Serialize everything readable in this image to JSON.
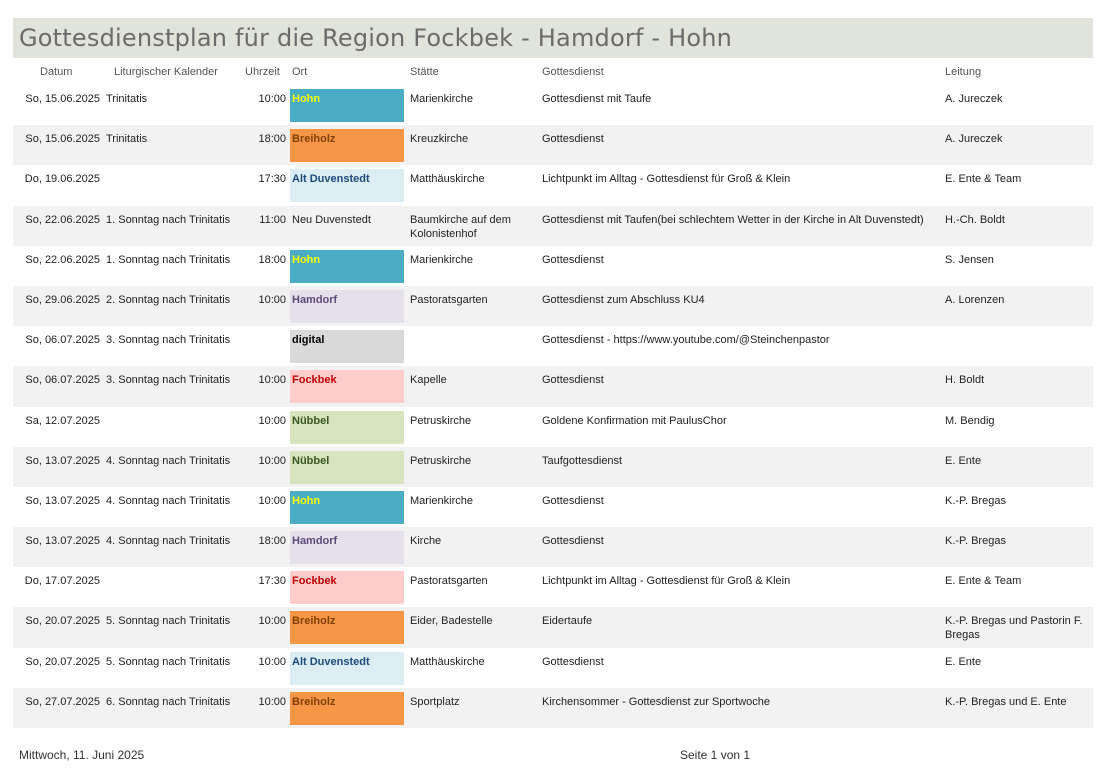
{
  "title": "Gottesdienstplan für die Region Fockbek - Hamdorf - Hohn",
  "headers": {
    "datum": "Datum",
    "lit": "Liturgischer Kalender",
    "uhrzeit": "Uhrzeit",
    "ort": "Ort",
    "staette": "Stätte",
    "gottesdienst": "Gottesdienst",
    "leitung": "Leitung"
  },
  "place_styles": {
    "Hohn": {
      "bg": "#4bacc6",
      "fg": "#ffff00"
    },
    "Breiholz": {
      "bg": "#f79646",
      "fg": "#7f3f00"
    },
    "Alt Duvenstedt": {
      "bg": "#daeef3",
      "fg": "#1f497d"
    },
    "Hamdorf": {
      "bg": "#e5e0ec",
      "fg": "#5f497a"
    },
    "digital": {
      "bg": "#d9d9d9",
      "fg": "#000000"
    },
    "Fockbek": {
      "bg": "#ffcccc",
      "fg": "#c00000"
    },
    "Nübbel": {
      "bg": "#d7e4bd",
      "fg": "#375623"
    }
  },
  "rows": [
    {
      "datum": "So, 15.06.2025",
      "lit": "Trinitatis",
      "uhrzeit": "10:00",
      "ort": "Hohn",
      "staette": "Marienkirche",
      "gottesdienst": "Gottesdienst mit Taufe",
      "leitung": "A. Jureczek"
    },
    {
      "datum": "So, 15.06.2025",
      "lit": "Trinitatis",
      "uhrzeit": "18:00",
      "ort": "Breiholz",
      "staette": "Kreuzkirche",
      "gottesdienst": "Gottesdienst",
      "leitung": "A. Jureczek"
    },
    {
      "datum": "Do, 19.06.2025",
      "lit": "",
      "uhrzeit": "17:30",
      "ort": "Alt Duvenstedt",
      "staette": "Matthäuskirche",
      "gottesdienst": "Lichtpunkt im Alltag - Gottesdienst für Groß & Klein",
      "leitung": "E. Ente & Team"
    },
    {
      "datum": "So, 22.06.2025",
      "lit": "1. Sonntag nach Trinitatis",
      "uhrzeit": "11:00",
      "ort": "Neu Duvenstedt",
      "staette": "Baumkirche auf dem Kolonistenhof",
      "gottesdienst": "Gottesdienst mit Taufen(bei schlechtem Wetter in der Kirche in Alt Duvenstedt)",
      "leitung": "H.-Ch. Boldt"
    },
    {
      "datum": "So, 22.06.2025",
      "lit": "1. Sonntag nach Trinitatis",
      "uhrzeit": "18:00",
      "ort": "Hohn",
      "staette": "Marienkirche",
      "gottesdienst": "Gottesdienst",
      "leitung": "S. Jensen"
    },
    {
      "datum": "So, 29.06.2025",
      "lit": "2. Sonntag nach Trinitatis",
      "uhrzeit": "10:00",
      "ort": "Hamdorf",
      "staette": "Pastoratsgarten",
      "gottesdienst": "Gottesdienst zum Abschluss KU4",
      "leitung": "A. Lorenzen"
    },
    {
      "datum": "So, 06.07.2025",
      "lit": "3. Sonntag nach Trinitatis",
      "uhrzeit": "",
      "ort": "digital",
      "staette": "",
      "gottesdienst": "Gottesdienst - https://www.youtube.com/@Steinchenpastor",
      "leitung": ""
    },
    {
      "datum": "So, 06.07.2025",
      "lit": "3. Sonntag nach Trinitatis",
      "uhrzeit": "10:00",
      "ort": "Fockbek",
      "staette": "Kapelle",
      "gottesdienst": "Gottesdienst",
      "leitung": "H. Boldt"
    },
    {
      "datum": "Sa, 12.07.2025",
      "lit": "",
      "uhrzeit": "10:00",
      "ort": "Nübbel",
      "staette": "Petruskirche",
      "gottesdienst": "Goldene Konfirmation mit PaulusChor",
      "leitung": "M. Bendig"
    },
    {
      "datum": "So, 13.07.2025",
      "lit": "4. Sonntag nach Trinitatis",
      "uhrzeit": "10:00",
      "ort": "Nübbel",
      "staette": "Petruskirche",
      "gottesdienst": "Taufgottesdienst",
      "leitung": "E. Ente"
    },
    {
      "datum": "So, 13.07.2025",
      "lit": "4. Sonntag nach Trinitatis",
      "uhrzeit": "10:00",
      "ort": "Hohn",
      "staette": "Marienkirche",
      "gottesdienst": "Gottesdienst",
      "leitung": "K.-P. Bregas"
    },
    {
      "datum": "So, 13.07.2025",
      "lit": "4. Sonntag nach Trinitatis",
      "uhrzeit": "18:00",
      "ort": "Hamdorf",
      "staette": "Kirche",
      "gottesdienst": "Gottesdienst",
      "leitung": "K.-P. Bregas"
    },
    {
      "datum": "Do, 17.07.2025",
      "lit": "",
      "uhrzeit": "17:30",
      "ort": "Fockbek",
      "staette": "Pastoratsgarten",
      "gottesdienst": "Lichtpunkt im Alltag - Gottesdienst für Groß & Klein",
      "leitung": "E. Ente & Team"
    },
    {
      "datum": "So, 20.07.2025",
      "lit": "5. Sonntag nach Trinitatis",
      "uhrzeit": "10:00",
      "ort": "Breiholz",
      "staette": "Eider, Badestelle",
      "gottesdienst": "Eidertaufe",
      "leitung": "K.-P. Bregas und Pastorin F. Bregas"
    },
    {
      "datum": "So, 20.07.2025",
      "lit": "5. Sonntag nach Trinitatis",
      "uhrzeit": "10:00",
      "ort": "Alt Duvenstedt",
      "staette": "Matthäuskirche",
      "gottesdienst": "Gottesdienst",
      "leitung": "E. Ente"
    },
    {
      "datum": "So, 27.07.2025",
      "lit": "6. Sonntag nach Trinitatis",
      "uhrzeit": "10:00",
      "ort": "Breiholz",
      "staette": "Sportplatz",
      "gottesdienst": "Kirchensommer - Gottesdienst zur Sportwoche",
      "leitung": "K.-P. Bregas und E. Ente"
    }
  ],
  "footer": {
    "date": "Mittwoch, 11. Juni 2025",
    "page": "Seite 1 von 1"
  }
}
